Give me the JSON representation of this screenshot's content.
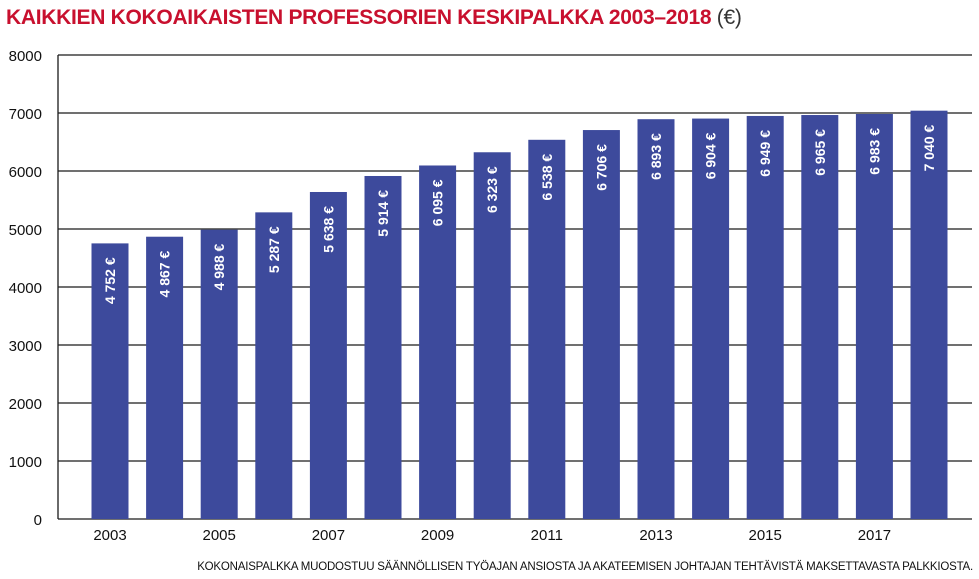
{
  "chart_data": {
    "type": "bar",
    "title": "KAIKKIEN KOKOAIKAISTEN PROFESSORIEN KESKIPALKKA 2003–2018",
    "title_unit": "(€)",
    "xlabel": "",
    "ylabel": "",
    "ylim": [
      0,
      8000
    ],
    "yticks": [
      "0",
      "1000",
      "2000",
      "3000",
      "4000",
      "5000",
      "6000",
      "7000",
      "8000"
    ],
    "categories": [
      "2003",
      "2004",
      "2005",
      "2006",
      "2007",
      "2008",
      "2009",
      "2010",
      "2011",
      "2012",
      "2013",
      "2014",
      "2015",
      "2016",
      "2017",
      "2018"
    ],
    "xtick_labels": [
      "2003",
      "2005",
      "2007",
      "2009",
      "2011",
      "2013",
      "2015",
      "2017"
    ],
    "values": [
      4752,
      4867,
      4988,
      5287,
      5638,
      5914,
      6095,
      6323,
      6538,
      6706,
      6893,
      6904,
      6949,
      6965,
      6983,
      7040
    ],
    "data_labels": [
      "4 752 €",
      "4 867 €",
      "4 988 €",
      "5 287 €",
      "5 638 €",
      "5 914 €",
      "6 095 €",
      "6 323 €",
      "6 538 €",
      "6 706 €",
      "6 893 €",
      "6 904 €",
      "6 949 €",
      "6 965 €",
      "6 983 €",
      "7 040 €"
    ],
    "grid": true,
    "legend": "none",
    "colors": {
      "bar": "#3d4a9c",
      "grid": "#1a1a1a",
      "title": "#c8102e"
    }
  },
  "footnote": "KOKONAISPALKKA MUODOSTUU SÄÄNNÖLLISEN TYÖAJAN ANSIOSTA JA AKATEEMISEN JOHTAJAN TEHTÄVISTÄ MAKSETTAVASTA PALKKIOSTA."
}
